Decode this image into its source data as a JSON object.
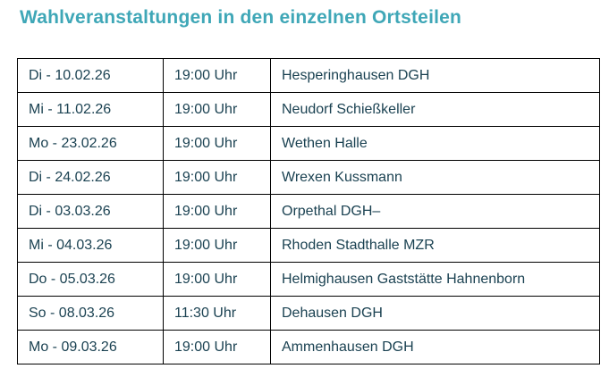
{
  "title": "Wahlveranstaltungen in den einzelnen Ortsteilen",
  "colors": {
    "title_teal": "#3fa7b7",
    "cell_text": "#1b4252",
    "table_border": "#000000",
    "background": "#ffffff"
  },
  "table": {
    "rows": [
      {
        "date": "Di - 10.02.26",
        "time": "19:00 Uhr",
        "location": "Hesperinghausen DGH"
      },
      {
        "date": "Mi - 11.02.26",
        "time": "19:00 Uhr",
        "location": "Neudorf Schießkeller"
      },
      {
        "date": "Mo - 23.02.26",
        "time": "19:00 Uhr",
        "location": "Wethen Halle"
      },
      {
        "date": "Di - 24.02.26",
        "time": "19:00 Uhr",
        "location": "Wrexen Kussmann"
      },
      {
        "date": "Di - 03.03.26",
        "time": "19:00 Uhr",
        "location": "Orpethal DGH–"
      },
      {
        "date": "Mi - 04.03.26",
        "time": "19:00 Uhr",
        "location": "Rhoden Stadthalle MZR"
      },
      {
        "date": "Do - 05.03.26",
        "time": "19:00 Uhr",
        "location": "Helmighausen Gaststätte Hahnenborn"
      },
      {
        "date": "So - 08.03.26",
        "time": "11:30 Uhr",
        "location": "Dehausen DGH"
      },
      {
        "date": "Mo - 09.03.26",
        "time": "19:00 Uhr",
        "location": "Ammenhausen DGH"
      }
    ]
  }
}
